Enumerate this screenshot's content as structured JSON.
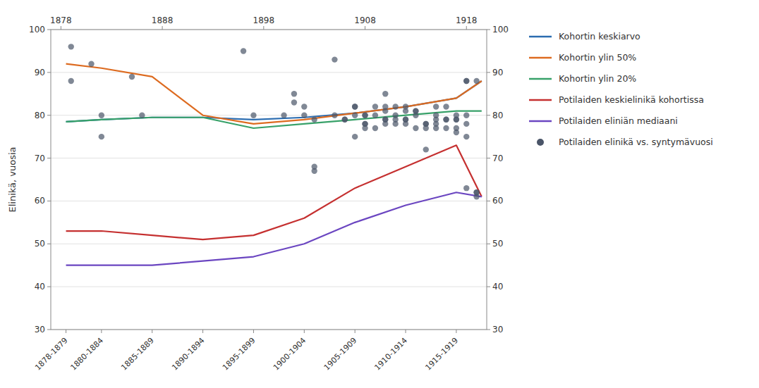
{
  "chart_data": {
    "type": "line",
    "y_label": "Elinikä, vuosia",
    "xlim": [
      1877,
      1920
    ],
    "ylim": [
      30,
      100
    ],
    "yticks": [
      30,
      40,
      50,
      60,
      70,
      80,
      90,
      100
    ],
    "xticks": [
      {
        "value": 1878.5,
        "label": "1878-1879"
      },
      {
        "value": 1882,
        "label": "1880-1884"
      },
      {
        "value": 1887,
        "label": "1885-1889"
      },
      {
        "value": 1892,
        "label": "1890-1894"
      },
      {
        "value": 1897,
        "label": "1895-1899"
      },
      {
        "value": 1902,
        "label": "1900-1904"
      },
      {
        "value": 1907,
        "label": "1905-1909"
      },
      {
        "value": 1912,
        "label": "1910-1914"
      },
      {
        "value": 1917,
        "label": "1915-1919"
      }
    ],
    "x2ticks": [
      1878,
      1888,
      1898,
      1908,
      1918
    ],
    "grid": true,
    "legend": "right",
    "series": [
      {
        "name": "Kohortin keskiarvo",
        "type": "line",
        "color": "#2b6cb0",
        "line_style": "solid",
        "x": [
          1878.5,
          1882,
          1887,
          1892,
          1897,
          1902,
          1907,
          1912,
          1917,
          1919.5
        ],
        "values": [
          78.5,
          79,
          79.5,
          79.5,
          79,
          79.5,
          80.5,
          82,
          84,
          88
        ]
      },
      {
        "name": "Kohortin ylin 50%",
        "type": "line",
        "color": "#dd6b20",
        "line_style": "solid",
        "x": [
          1878.5,
          1882,
          1887,
          1892,
          1897,
          1902,
          1907,
          1912,
          1917,
          1919.5
        ],
        "values": [
          92,
          91,
          89,
          80,
          78,
          79,
          80.5,
          82,
          84,
          88
        ]
      },
      {
        "name": "Kohortin ylin 20%",
        "type": "line",
        "color": "#38a169",
        "line_style": "solid",
        "x": [
          1878.5,
          1882,
          1887,
          1892,
          1897,
          1902,
          1907,
          1912,
          1917,
          1919.5
        ],
        "values": [
          78.5,
          79,
          79.5,
          79.5,
          77,
          78,
          79,
          80,
          81,
          81
        ]
      },
      {
        "name": "Potilaiden keskielinikä kohortissa",
        "type": "line",
        "color": "#c53030",
        "line_style": "solid",
        "x": [
          1878.5,
          1882,
          1887,
          1892,
          1897,
          1902,
          1907,
          1912,
          1917,
          1919.5
        ],
        "values": [
          53,
          53,
          52,
          51,
          52,
          56,
          63,
          68,
          73,
          61
        ]
      },
      {
        "name": "Potilaiden eliniän mediaani",
        "type": "line",
        "color": "#6b46c1",
        "line_style": "solid",
        "x": [
          1878.5,
          1882,
          1887,
          1892,
          1897,
          1902,
          1907,
          1912,
          1917,
          1919.5
        ],
        "values": [
          45,
          45,
          45,
          46,
          47,
          50,
          55,
          59,
          62,
          61
        ]
      },
      {
        "name": "Potilaiden elinikä vs. syntymävuosi",
        "type": "scatter",
        "color": "#4a5568",
        "marker": "circle",
        "x": [
          1879,
          1879,
          1881,
          1882,
          1882,
          1885,
          1886,
          1896,
          1897,
          1900,
          1901,
          1901,
          1902,
          1902,
          1903,
          1903,
          1903,
          1905,
          1905,
          1906,
          1906,
          1907,
          1907,
          1907,
          1907,
          1908,
          1908,
          1908,
          1908,
          1908,
          1909,
          1909,
          1909,
          1910,
          1910,
          1910,
          1910,
          1910,
          1910,
          1911,
          1911,
          1911,
          1911,
          1912,
          1912,
          1912,
          1912,
          1912,
          1913,
          1913,
          1913,
          1913,
          1914,
          1914,
          1914,
          1914,
          1915,
          1915,
          1915,
          1915,
          1915,
          1916,
          1916,
          1916,
          1916,
          1917,
          1917,
          1917,
          1917,
          1917,
          1918,
          1918,
          1918,
          1918,
          1918,
          1918,
          1919,
          1919,
          1919,
          1919
        ],
        "values": [
          96,
          88,
          92,
          80,
          75,
          89,
          80,
          95,
          80,
          80,
          85,
          83,
          82,
          80,
          68,
          67,
          79,
          93,
          80,
          79,
          79,
          82,
          82,
          80,
          75,
          80,
          80,
          78,
          77,
          78,
          82,
          80,
          77,
          85,
          82,
          81,
          79,
          79,
          78,
          82,
          80,
          79,
          78,
          82,
          81,
          79,
          79,
          78,
          81,
          81,
          80,
          77,
          78,
          78,
          77,
          72,
          82,
          80,
          79,
          78,
          77,
          82,
          79,
          79,
          77,
          80,
          79,
          79,
          77,
          76,
          88,
          88,
          80,
          78,
          75,
          63,
          88,
          62,
          62,
          61
        ]
      }
    ]
  }
}
